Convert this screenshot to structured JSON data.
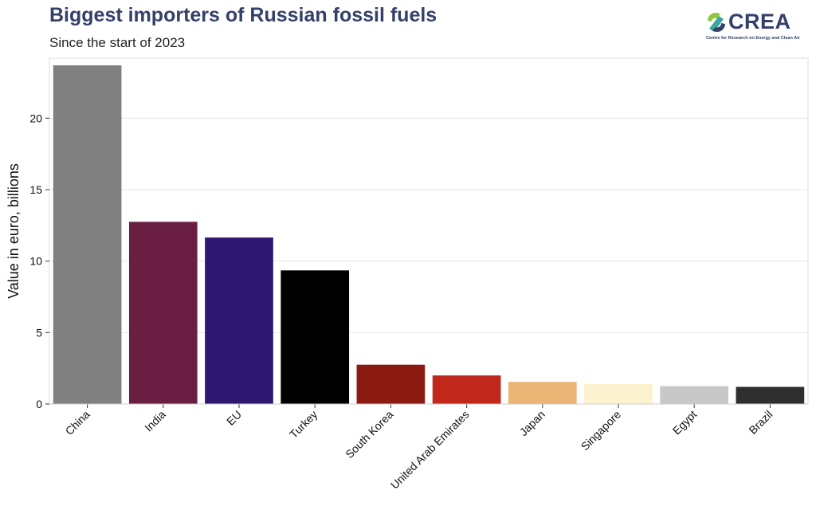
{
  "header": {
    "title": "Biggest importers of Russian fossil fuels",
    "subtitle": "Since the start of 2023"
  },
  "logo": {
    "name": "CREA",
    "tagline": "Centre for Research on Energy and Clean Air",
    "colors": [
      "#35406a",
      "#8dc63f",
      "#3ba5a0"
    ]
  },
  "chart_data": {
    "type": "bar",
    "title": "Biggest importers of Russian fossil fuels",
    "subtitle": "Since the start of 2023",
    "xlabel": "",
    "ylabel": "Value in euro, billions",
    "categories": [
      "China",
      "India",
      "EU",
      "Turkey",
      "South Korea",
      "United Arab Emirates",
      "Japan",
      "Singapore",
      "Egypt",
      "Brazil"
    ],
    "values": [
      23.7,
      12.75,
      11.65,
      9.35,
      2.75,
      2.0,
      1.55,
      1.4,
      1.25,
      1.2
    ],
    "colors": [
      "#808080",
      "#6a1f42",
      "#2e1770",
      "#000000",
      "#8b1a12",
      "#c0281c",
      "#ebb575",
      "#fdf2cf",
      "#c8c8c8",
      "#2f2f2f"
    ],
    "ylim": [
      0,
      24.2
    ],
    "yticks": [
      0,
      5,
      10,
      15,
      20
    ],
    "grid": true,
    "legend": "none"
  }
}
